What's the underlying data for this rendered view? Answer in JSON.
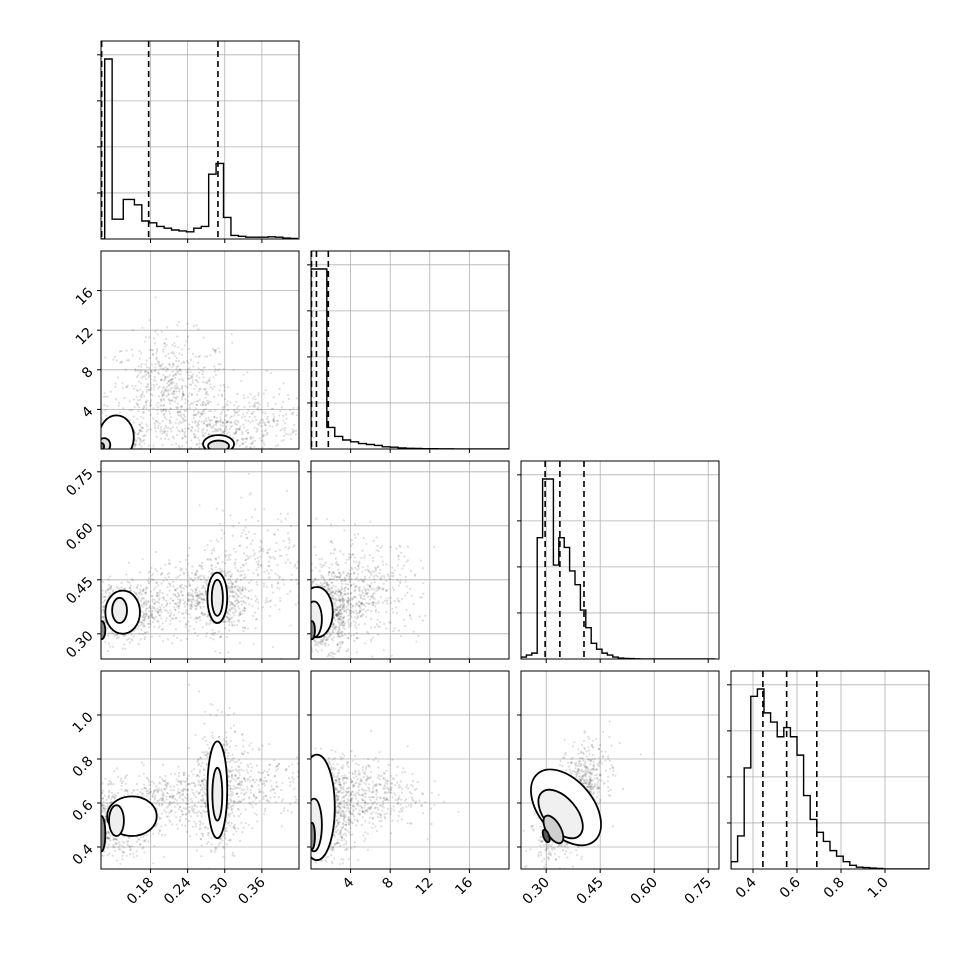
{
  "chart_data": {
    "type": "corner",
    "description_grid": "4x4 lower-triangular corner plot: 1D marginal histograms on the diagonal, 2D scatter + density contours below",
    "parameters": [
      {
        "index": 0,
        "range": [
          0.1,
          0.42
        ],
        "ticks": [
          0.18,
          0.24,
          0.3,
          0.36
        ],
        "tick_labels": [
          "0.18",
          "0.24",
          "0.30",
          "0.36"
        ]
      },
      {
        "index": 1,
        "range": [
          0,
          20
        ],
        "ticks": [
          4,
          8,
          12,
          16
        ],
        "tick_labels": [
          "4",
          "8",
          "12",
          "16"
        ]
      },
      {
        "index": 2,
        "range": [
          0.23,
          0.78
        ],
        "ticks": [
          0.3,
          0.45,
          0.6,
          0.75
        ],
        "tick_labels": [
          "0.30",
          "0.45",
          "0.60",
          "0.75"
        ]
      },
      {
        "index": 3,
        "range": [
          0.3,
          1.2
        ],
        "ticks": [
          0.4,
          0.6,
          0.8,
          1.0
        ],
        "tick_labels": [
          "0.4",
          "0.6",
          "0.8",
          "1.0"
        ]
      }
    ],
    "histograms": [
      {
        "param": 0,
        "bin_edges": [
          0.1,
          0.106,
          0.112,
          0.118,
          0.124,
          0.13,
          0.136,
          0.142,
          0.148,
          0.154,
          0.16,
          0.166,
          0.172,
          0.178,
          0.184,
          0.19,
          0.196,
          0.202,
          0.208,
          0.214,
          0.22,
          0.226,
          0.232,
          0.238,
          0.244,
          0.25,
          0.256,
          0.262,
          0.268,
          0.274,
          0.28,
          0.286,
          0.292,
          0.298,
          0.304,
          0.31,
          0.316,
          0.322,
          0.328,
          0.334,
          0.34,
          0.346,
          0.352,
          0.358,
          0.364,
          0.37,
          0.376,
          0.382,
          0.388,
          0.394,
          0.4,
          0.406,
          0.412,
          0.418
        ],
        "counts": [
          0.0,
          1.0,
          1.0,
          0.11,
          0.11,
          0.11,
          0.22,
          0.22,
          0.22,
          0.19,
          0.19,
          0.1,
          0.1,
          0.09,
          0.09,
          0.07,
          0.07,
          0.06,
          0.06,
          0.05,
          0.05,
          0.045,
          0.045,
          0.04,
          0.04,
          0.06,
          0.06,
          0.07,
          0.07,
          0.36,
          0.36,
          0.42,
          0.42,
          0.12,
          0.12,
          0.02,
          0.02,
          0.015,
          0.015,
          0.01,
          0.01,
          0.01,
          0.01,
          0.01,
          0.01,
          0.012,
          0.012,
          0.01,
          0.01,
          0.005,
          0.005,
          0.003,
          0.003
        ],
        "quantiles": [
          0.101,
          0.177,
          0.289
        ]
      },
      {
        "param": 1,
        "bin_edges": [
          0.0,
          0.4,
          0.8,
          1.2,
          1.6,
          2.0,
          2.4,
          2.8,
          3.2,
          3.6,
          4.0,
          4.4,
          4.8,
          5.2,
          5.6,
          6.0,
          6.4,
          6.8,
          7.2,
          7.6,
          8.0,
          8.4,
          8.8,
          9.2,
          9.6,
          10.0,
          10.4,
          10.8,
          11.2,
          11.6,
          12.0,
          12.4,
          12.8,
          13.2,
          13.6,
          14.0,
          14.4,
          14.8,
          15.2,
          15.6,
          16.0,
          16.4,
          16.8,
          17.2,
          17.6,
          18.0,
          18.4,
          18.8,
          19.2,
          19.6,
          20.0
        ],
        "counts": [
          1.0,
          1.0,
          1.0,
          1.0,
          0.12,
          0.12,
          0.07,
          0.07,
          0.05,
          0.05,
          0.04,
          0.04,
          0.03,
          0.03,
          0.025,
          0.025,
          0.02,
          0.02,
          0.012,
          0.012,
          0.01,
          0.01,
          0.006,
          0.006,
          0.004,
          0.004,
          0.003,
          0.003,
          0.002,
          0.002,
          0.002,
          0.002,
          0.001,
          0.001,
          0.001,
          0.001,
          0.0,
          0.0,
          0.0,
          0.0,
          0.0,
          0.0,
          0.0,
          0.0,
          0.0,
          0.0,
          0.0,
          0.0,
          0.0,
          0.0
        ],
        "quantiles": [
          0.05,
          0.55,
          1.75
        ]
      },
      {
        "param": 2,
        "bin_edges": [
          0.23,
          0.245,
          0.26,
          0.275,
          0.29,
          0.305,
          0.32,
          0.335,
          0.35,
          0.365,
          0.38,
          0.395,
          0.41,
          0.425,
          0.44,
          0.455,
          0.47,
          0.485,
          0.5,
          0.515,
          0.53,
          0.545,
          0.56,
          0.575,
          0.59,
          0.605,
          0.62,
          0.635,
          0.65,
          0.665,
          0.68,
          0.695,
          0.71,
          0.725,
          0.74,
          0.755,
          0.77
        ],
        "counts": [
          0.01,
          0.02,
          0.03,
          0.62,
          0.92,
          0.92,
          0.48,
          0.62,
          0.57,
          0.45,
          0.38,
          0.25,
          0.16,
          0.08,
          0.05,
          0.03,
          0.02,
          0.01,
          0.005,
          0.003,
          0.002,
          0.001,
          0.0,
          0.0,
          0.0,
          0.0,
          0.0,
          0.0,
          0.0,
          0.0,
          0.0,
          0.0,
          0.0,
          0.0,
          0.0,
          0.0
        ],
        "quantiles": [
          0.297,
          0.338,
          0.405
        ]
      },
      {
        "param": 3,
        "bin_edges": [
          0.3,
          0.33,
          0.36,
          0.39,
          0.42,
          0.45,
          0.48,
          0.51,
          0.54,
          0.57,
          0.6,
          0.63,
          0.66,
          0.69,
          0.72,
          0.75,
          0.78,
          0.81,
          0.84,
          0.87,
          0.9,
          0.93,
          0.96,
          0.99,
          1.02,
          1.05,
          1.08,
          1.11,
          1.14,
          1.17,
          1.2
        ],
        "counts": [
          0.04,
          0.18,
          0.55,
          0.94,
          0.98,
          0.85,
          0.8,
          0.72,
          0.77,
          0.72,
          0.62,
          0.4,
          0.27,
          0.2,
          0.15,
          0.1,
          0.07,
          0.04,
          0.02,
          0.01,
          0.008,
          0.005,
          0.003,
          0.0,
          0.0,
          0.0,
          0.0,
          0.0,
          0.0,
          0.0
        ],
        "quantiles": [
          0.445,
          0.553,
          0.69
        ]
      }
    ],
    "scatter_clusters": [
      {
        "pair": [
          0,
          1
        ],
        "clusters": [
          {
            "cx": 0.21,
            "cy": 5.5,
            "sx": 0.05,
            "sy": 3.0,
            "n": 700
          },
          {
            "cx": 0.29,
            "cy": 1.2,
            "sx": 0.03,
            "sy": 1.5,
            "n": 300
          },
          {
            "cx": 0.13,
            "cy": 0.6,
            "sx": 0.02,
            "sy": 0.8,
            "n": 300
          },
          {
            "cx": 0.36,
            "cy": 2.5,
            "sx": 0.05,
            "sy": 2.0,
            "n": 250
          }
        ]
      },
      {
        "pair": [
          0,
          2
        ],
        "clusters": [
          {
            "cx": 0.13,
            "cy": 0.36,
            "sx": 0.03,
            "sy": 0.04,
            "n": 600
          },
          {
            "cx": 0.29,
            "cy": 0.4,
            "sx": 0.025,
            "sy": 0.05,
            "n": 500
          },
          {
            "cx": 0.36,
            "cy": 0.48,
            "sx": 0.05,
            "sy": 0.08,
            "n": 250
          },
          {
            "cx": 0.21,
            "cy": 0.4,
            "sx": 0.04,
            "sy": 0.05,
            "n": 300
          }
        ]
      },
      {
        "pair": [
          0,
          3
        ],
        "clusters": [
          {
            "cx": 0.13,
            "cy": 0.52,
            "sx": 0.03,
            "sy": 0.08,
            "n": 600
          },
          {
            "cx": 0.29,
            "cy": 0.66,
            "sx": 0.02,
            "sy": 0.15,
            "n": 500
          },
          {
            "cx": 0.35,
            "cy": 0.68,
            "sx": 0.05,
            "sy": 0.08,
            "n": 250
          },
          {
            "cx": 0.21,
            "cy": 0.62,
            "sx": 0.04,
            "sy": 0.06,
            "n": 300
          }
        ]
      },
      {
        "pair": [
          1,
          2
        ],
        "clusters": [
          {
            "cx": 1.2,
            "cy": 0.36,
            "sx": 1.5,
            "sy": 0.05,
            "n": 900
          },
          {
            "cx": 5.0,
            "cy": 0.42,
            "sx": 3.0,
            "sy": 0.07,
            "n": 500
          }
        ]
      },
      {
        "pair": [
          1,
          3
        ],
        "clusters": [
          {
            "cx": 1.2,
            "cy": 0.55,
            "sx": 1.5,
            "sy": 0.12,
            "n": 900
          },
          {
            "cx": 5.0,
            "cy": 0.64,
            "sx": 3.0,
            "sy": 0.08,
            "n": 500
          }
        ]
      },
      {
        "pair": [
          2,
          3
        ],
        "clusters": [
          {
            "cx": 0.37,
            "cy": 0.6,
            "sx": 0.045,
            "sy": 0.12,
            "n": 1100,
            "rho": 0.6
          }
        ]
      }
    ],
    "contours": [
      {
        "pair": [
          0,
          1
        ],
        "levels": [
          {
            "fill": "#ffffff",
            "ellipses": [
              [
                0.125,
                1.2,
                0.028,
                2.2
              ],
              [
                0.29,
                0.5,
                0.025,
                0.9
              ]
            ]
          },
          {
            "fill": "#e2e2e2",
            "ellipses": [
              [
                0.105,
                0.4,
                0.01,
                0.7
              ],
              [
                0.29,
                0.3,
                0.017,
                0.55
              ]
            ]
          },
          {
            "fill": "#7a7a7a",
            "ellipses": [
              [
                0.101,
                0.25,
                0.004,
                0.35
              ]
            ]
          }
        ]
      },
      {
        "pair": [
          0,
          2
        ],
        "levels": [
          {
            "fill": "#ffffff",
            "ellipses": [
              [
                0.135,
                0.36,
                0.028,
                0.06
              ],
              [
                0.288,
                0.4,
                0.016,
                0.07
              ]
            ]
          },
          {
            "fill": "#efefef",
            "ellipses": [
              [
                0.13,
                0.365,
                0.012,
                0.035
              ],
              [
                0.288,
                0.4,
                0.009,
                0.05
              ]
            ]
          },
          {
            "fill": "#8a8a8a",
            "ellipses": [
              [
                0.101,
                0.31,
                0.006,
                0.025
              ]
            ]
          }
        ]
      },
      {
        "pair": [
          0,
          3
        ],
        "levels": [
          {
            "fill": "#ffffff",
            "ellipses": [
              [
                0.15,
                0.54,
                0.04,
                0.09
              ],
              [
                0.288,
                0.66,
                0.016,
                0.22
              ]
            ]
          },
          {
            "fill": "#efefef",
            "ellipses": [
              [
                0.125,
                0.52,
                0.012,
                0.07
              ],
              [
                0.288,
                0.64,
                0.008,
                0.12
              ]
            ]
          },
          {
            "fill": "#8a8a8a",
            "ellipses": [
              [
                0.101,
                0.46,
                0.006,
                0.08
              ]
            ]
          }
        ]
      },
      {
        "pair": [
          1,
          2
        ],
        "levels": [
          {
            "fill": "#ffffff",
            "ellipses": [
              [
                0.6,
                0.36,
                1.6,
                0.07
              ]
            ]
          },
          {
            "fill": "#efefef",
            "ellipses": [
              [
                0.3,
                0.34,
                0.8,
                0.05
              ]
            ]
          },
          {
            "fill": "#8a8a8a",
            "ellipses": [
              [
                0.1,
                0.31,
                0.3,
                0.025
              ]
            ]
          }
        ]
      },
      {
        "pair": [
          1,
          3
        ],
        "levels": [
          {
            "fill": "#ffffff",
            "ellipses": [
              [
                0.6,
                0.58,
                1.8,
                0.24
              ]
            ]
          },
          {
            "fill": "#efefef",
            "ellipses": [
              [
                0.3,
                0.5,
                0.8,
                0.12
              ]
            ]
          },
          {
            "fill": "#8a8a8a",
            "ellipses": [
              [
                0.1,
                0.45,
                0.3,
                0.06
              ]
            ]
          }
        ]
      },
      {
        "pair": [
          2,
          3
        ],
        "levels": [
          {
            "fill": "#ffffff",
            "ellipses": [
              [
                0.355,
                0.58,
                0.075,
                0.2,
                40
              ]
            ]
          },
          {
            "fill": "#f0f0f0",
            "ellipses": [
              [
                0.34,
                0.55,
                0.045,
                0.13,
                40
              ]
            ]
          },
          {
            "fill": "#cfcfcf",
            "ellipses": [
              [
                0.32,
                0.48,
                0.02,
                0.07,
                30
              ]
            ]
          },
          {
            "fill": "#5a5a5a",
            "ellipses": [
              [
                0.3,
                0.45,
                0.008,
                0.03,
                20
              ]
            ]
          }
        ]
      }
    ],
    "grid": true,
    "quantile_style": "dashed black vertical lines",
    "title": "",
    "labels": [
      "",
      "",
      "",
      ""
    ]
  },
  "colors": {
    "background": "#ffffff",
    "axes": "#000000",
    "grid": "#b0b0b0",
    "points": "#000000"
  }
}
